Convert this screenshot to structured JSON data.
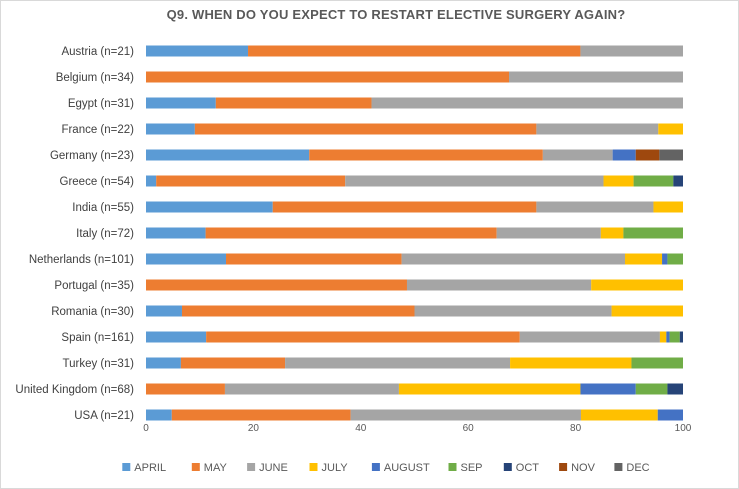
{
  "chart_data": {
    "type": "bar",
    "orientation": "horizontal",
    "stacked": true,
    "title": "Q9. WHEN DO YOU EXPECT TO RESTART ELECTIVE SURGERY AGAIN?",
    "categories": [
      "Austria (n=21)",
      "Belgium (n=34)",
      "Egypt (n=31)",
      "France (n=22)",
      "Germany (n=23)",
      "Greece (n=54)",
      "India (n=55)",
      "Italy (n=72)",
      "Netherlands (n=101)",
      "Portugal (n=35)",
      "Romania (n=30)",
      "Spain (n=161)",
      "Turkey (n=31)",
      "United Kingdom (n=68)",
      "USA (n=21)"
    ],
    "xlim": [
      0,
      100
    ],
    "xticks": [
      0,
      20,
      40,
      60,
      80,
      100
    ],
    "grid": false,
    "legend_position": "bottom",
    "series": [
      {
        "name": "APRIL",
        "color": "#5b9bd5",
        "values": [
          19,
          0,
          13,
          9.1,
          30.4,
          1.9,
          23.6,
          11.1,
          14.9,
          0,
          6.7,
          11.2,
          6.5,
          0,
          4.8
        ]
      },
      {
        "name": "MAY",
        "color": "#ed7d31",
        "values": [
          61.9,
          67.6,
          29,
          63.6,
          43.5,
          35.2,
          49.1,
          54.2,
          32.7,
          48.6,
          43.3,
          58.4,
          19.4,
          14.7,
          33.3
        ]
      },
      {
        "name": "JUNE",
        "color": "#a5a5a5",
        "values": [
          19.1,
          32.4,
          58,
          22.7,
          13,
          48.1,
          21.8,
          19.4,
          41.6,
          34.3,
          36.7,
          26.1,
          41.9,
          32.4,
          42.9
        ]
      },
      {
        "name": "JULY",
        "color": "#ffc000",
        "values": [
          0,
          0,
          0,
          4.6,
          0,
          5.6,
          5.5,
          4.2,
          6.9,
          17.1,
          13.3,
          1.2,
          22.6,
          33.8,
          14.3
        ]
      },
      {
        "name": "AUGUST",
        "color": "#4472c4",
        "values": [
          0,
          0,
          0,
          0,
          4.3,
          0,
          0,
          0,
          1,
          0,
          0,
          0.6,
          0,
          10.3,
          4.7
        ]
      },
      {
        "name": "SEP",
        "color": "#70ad47",
        "values": [
          0,
          0,
          0,
          0,
          0,
          7.4,
          0,
          11.1,
          2.9,
          0,
          0,
          1.9,
          9.6,
          5.9,
          0
        ]
      },
      {
        "name": "OCT",
        "color": "#264478",
        "values": [
          0,
          0,
          0,
          0,
          0,
          1.8,
          0,
          0,
          0,
          0,
          0,
          0.6,
          0,
          2.9,
          0
        ]
      },
      {
        "name": "NOV",
        "color": "#9e480e",
        "values": [
          0,
          0,
          0,
          0,
          4.4,
          0,
          0,
          0,
          0,
          0,
          0,
          0,
          0,
          0,
          0
        ]
      },
      {
        "name": "DEC",
        "color": "#636363",
        "values": [
          0,
          0,
          0,
          0,
          4.4,
          0,
          0,
          0,
          0,
          0,
          0,
          0,
          0,
          0,
          0
        ]
      }
    ]
  }
}
